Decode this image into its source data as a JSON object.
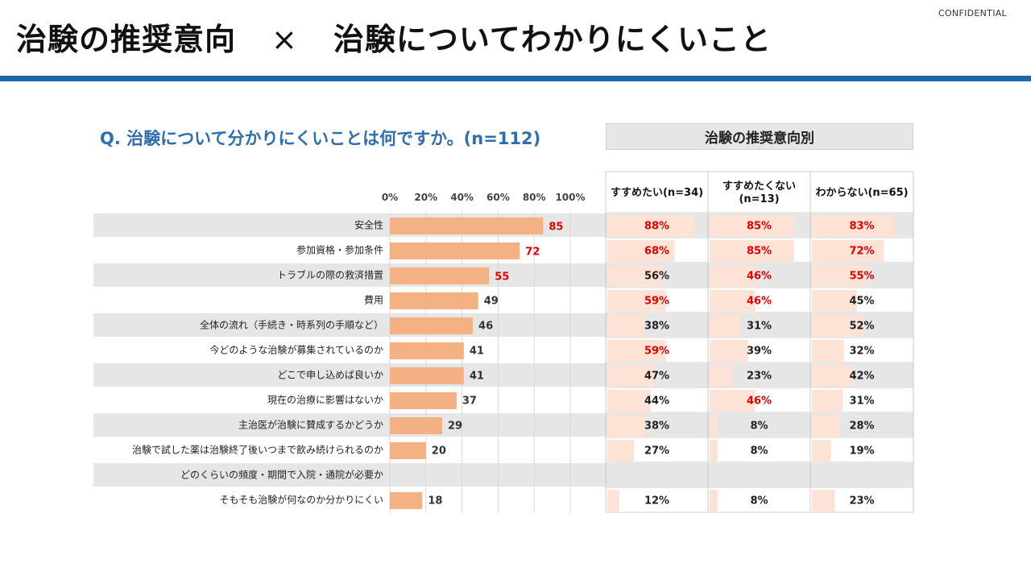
{
  "confidential": "CONFIDENTIAL",
  "title": {
    "left": "治験の推奨意向",
    "cross": "×",
    "right": "治験についてわかりにくいこと"
  },
  "question": "Q. 治験について分かりにくいことは何ですか。(n=112)",
  "group_header": "治験の推奨意向別",
  "colors": {
    "bar": "#f4b183",
    "cell_bar": "#fde2d6",
    "highlight": "#e00000",
    "normal": "#222222",
    "stripe": "#e6e6e6",
    "accent": "#1f66ad"
  },
  "chart_data": {
    "type": "bar",
    "orientation": "horizontal",
    "xlim": [
      0,
      100
    ],
    "ticks": [
      "0%",
      "20%",
      "40%",
      "60%",
      "80%",
      "100%"
    ],
    "categories": [
      "安全性",
      "参加資格・参加条件",
      "トラブルの際の救済措置",
      "費用",
      "全体の流れ（手続き・時系列の手順など）",
      "今どのような治験が募集されているのか",
      "どこで申し込めば良いか",
      "現在の治療に影響はないか",
      "主治医が治験に賛成するかどうか",
      "治験で試した薬は治験終了後いつまで飲み続けられるのか",
      "どのくらいの頻度・期間で入院・通院が必要か",
      "そもそも治験が何なのか分かりにくい"
    ],
    "values": [
      85,
      72,
      55,
      49,
      46,
      41,
      41,
      37,
      29,
      20,
      null,
      18
    ],
    "value_labels": [
      "85",
      "72",
      "55",
      "49",
      "46",
      "41",
      "41",
      "37",
      "29",
      "20",
      "",
      "18"
    ],
    "value_highlight": [
      true,
      true,
      true,
      false,
      false,
      false,
      false,
      false,
      false,
      false,
      false,
      false
    ],
    "breakdown": {
      "columns": [
        {
          "name": "すすめたい(n=34)",
          "values": [
            88,
            68,
            56,
            59,
            38,
            59,
            47,
            44,
            38,
            27,
            null,
            12
          ],
          "labels": [
            "88%",
            "68%",
            "56%",
            "59%",
            "38%",
            "59%",
            "47%",
            "44%",
            "38%",
            "27%",
            "",
            "12%"
          ],
          "highlight": [
            true,
            true,
            false,
            true,
            false,
            true,
            false,
            false,
            false,
            false,
            false,
            false
          ]
        },
        {
          "name": "すすめたくない(n=13)",
          "name_lines": [
            "すすめたくない",
            "(n=13)"
          ],
          "values": [
            85,
            85,
            46,
            46,
            31,
            39,
            23,
            46,
            8,
            8,
            null,
            8
          ],
          "labels": [
            "85%",
            "85%",
            "46%",
            "46%",
            "31%",
            "39%",
            "23%",
            "46%",
            "8%",
            "8%",
            "",
            "8%"
          ],
          "highlight": [
            true,
            true,
            true,
            true,
            false,
            false,
            false,
            true,
            false,
            false,
            false,
            false
          ]
        },
        {
          "name": "わからない(n=65)",
          "values": [
            83,
            72,
            55,
            45,
            52,
            32,
            42,
            31,
            28,
            19,
            null,
            23
          ],
          "labels": [
            "83%",
            "72%",
            "55%",
            "45%",
            "52%",
            "32%",
            "42%",
            "31%",
            "28%",
            "19%",
            "",
            "23%"
          ],
          "highlight": [
            true,
            true,
            true,
            false,
            false,
            false,
            false,
            false,
            false,
            false,
            false,
            false
          ]
        }
      ]
    }
  }
}
